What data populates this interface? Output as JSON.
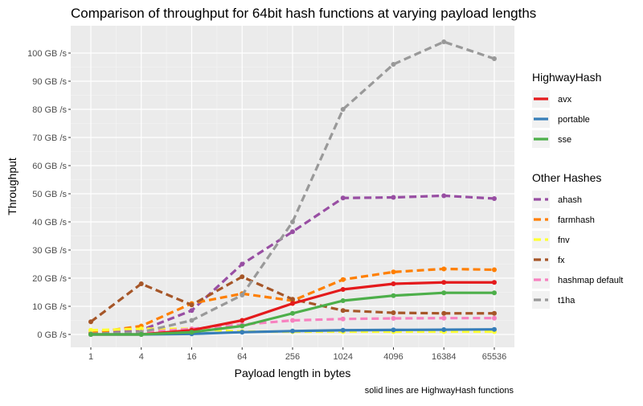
{
  "chart_data": {
    "type": "line",
    "title": "Comparison of throughput for 64bit hash functions at varying payload lengths",
    "xlabel": "Payload length in bytes",
    "ylabel": "Throughput",
    "caption": "solid lines are HighwayHash functions",
    "categories": [
      "1",
      "4",
      "16",
      "64",
      "256",
      "1024",
      "4096",
      "16384",
      "65536"
    ],
    "y_ticks": [
      {
        "value": 0,
        "label": "0 GB /s"
      },
      {
        "value": 10,
        "label": "10 GB /s"
      },
      {
        "value": 20,
        "label": "20 GB /s"
      },
      {
        "value": 30,
        "label": "30 GB /s"
      },
      {
        "value": 40,
        "label": "40 GB /s"
      },
      {
        "value": 50,
        "label": "50 GB /s"
      },
      {
        "value": 60,
        "label": "60 GB /s"
      },
      {
        "value": 70,
        "label": "70 GB /s"
      },
      {
        "value": 80,
        "label": "80 GB /s"
      },
      {
        "value": 90,
        "label": "90 GB /s"
      },
      {
        "value": 100,
        "label": "100 GB /s"
      }
    ],
    "ylim": [
      -3.5,
      108
    ],
    "grid": true,
    "legend_position": "right",
    "legend_groups": [
      {
        "title": "HighwayHash",
        "series": [
          "avx",
          "portable",
          "sse"
        ]
      },
      {
        "title": "Other Hashes",
        "series": [
          "ahash",
          "farmhash",
          "fnv",
          "fx",
          "hashmap default",
          "t1ha"
        ]
      }
    ],
    "series": [
      {
        "name": "avx",
        "color": "#E41A1C",
        "style": "solid",
        "values": [
          0,
          0,
          1.5,
          5,
          11,
          16,
          18,
          18.5,
          18.5
        ]
      },
      {
        "name": "portable",
        "color": "#377EB8",
        "style": "solid",
        "values": [
          0,
          0,
          0.2,
          0.8,
          1.2,
          1.5,
          1.6,
          1.7,
          1.8
        ]
      },
      {
        "name": "sse",
        "color": "#4DAF4A",
        "style": "solid",
        "values": [
          0,
          0,
          0.8,
          3,
          7.5,
          12,
          13.8,
          14.8,
          14.8
        ]
      },
      {
        "name": "ahash",
        "color": "#984EA3",
        "style": "dashed",
        "values": [
          0.3,
          1.5,
          8.5,
          25,
          36.5,
          48.5,
          48.7,
          49.3,
          48.3
        ]
      },
      {
        "name": "farmhash",
        "color": "#FF7F00",
        "style": "dashed",
        "values": [
          0.5,
          3,
          11,
          14.5,
          12,
          19.5,
          22.2,
          23.3,
          23
        ]
      },
      {
        "name": "fnv",
        "color": "#FFFF33",
        "style": "dashed",
        "values": [
          1.5,
          2,
          2,
          1,
          1,
          1,
          1,
          1,
          1
        ]
      },
      {
        "name": "fx",
        "color": "#A65628",
        "style": "dashed",
        "values": [
          4.5,
          18,
          10.5,
          20.5,
          12.5,
          8.5,
          7.7,
          7.5,
          7.5
        ]
      },
      {
        "name": "hashmap default",
        "color": "#F781BF",
        "style": "dashed",
        "values": [
          0,
          0.8,
          2,
          3.5,
          5,
          5.5,
          5.7,
          5.8,
          5.8
        ]
      },
      {
        "name": "t1ha",
        "color": "#999999",
        "style": "dashed",
        "values": [
          0.2,
          0.8,
          5,
          14,
          40,
          80,
          96,
          104,
          98
        ]
      }
    ]
  }
}
